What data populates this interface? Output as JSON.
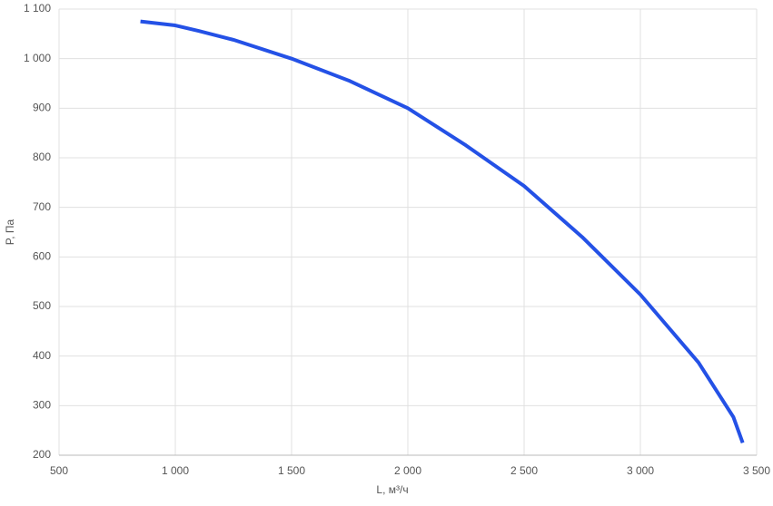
{
  "chart_data": {
    "type": "line",
    "x_label": "L, м³/ч",
    "y_label": "P, Па",
    "x": [
      850,
      1000,
      1100,
      1250,
      1500,
      1750,
      2000,
      2250,
      2500,
      2750,
      3000,
      3250,
      3400,
      3440
    ],
    "series": [
      {
        "color": "#2451e6",
        "values": [
          1075,
          1067,
          1056,
          1038,
          1000,
          955,
          900,
          825,
          743,
          640,
          524,
          387,
          277,
          225
        ]
      }
    ],
    "xlim": [
      500,
      3500
    ],
    "xticks": [
      500,
      {
        "value": 1000,
        "label": "1 000"
      },
      {
        "value": 1500,
        "label": "1 500"
      },
      {
        "value": 2000,
        "label": "2 000"
      },
      {
        "value": 2500,
        "label": "2 500"
      },
      {
        "value": 3000,
        "label": "3 000"
      },
      {
        "value": 3500,
        "label": "3 500"
      }
    ],
    "ylim": [
      200,
      1100
    ],
    "yticks": [
      200,
      300,
      400,
      500,
      600,
      700,
      800,
      900,
      {
        "value": 1000,
        "label": "1 000"
      },
      {
        "value": 1100,
        "label": "1 100"
      }
    ],
    "grid": true
  }
}
